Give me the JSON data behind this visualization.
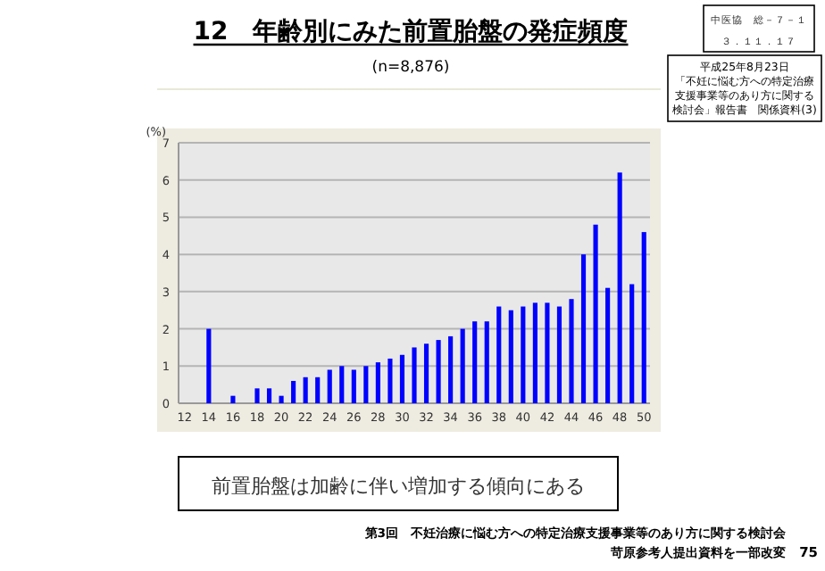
{
  "chart_data": {
    "type": "bar",
    "title": "12　年齢別にみた前置胎盤の発症頻度",
    "subtitle": "(n=8,876)",
    "ylabel": "(%)",
    "categories": [
      "12",
      null,
      "14",
      null,
      "16",
      null,
      "18",
      null,
      "20",
      null,
      "22",
      null,
      "24",
      null,
      "26",
      null,
      "28",
      null,
      "30",
      null,
      "32",
      null,
      "34",
      null,
      "36",
      null,
      "38",
      null,
      "40",
      null,
      "42",
      null,
      "44",
      null,
      "46",
      null,
      "48",
      null,
      "50"
    ],
    "values": [
      null,
      null,
      2.0,
      null,
      0.2,
      null,
      0.4,
      0.4,
      0.2,
      0.6,
      0.7,
      0.7,
      0.9,
      1.0,
      0.9,
      1.0,
      1.1,
      1.2,
      1.3,
      1.5,
      1.6,
      1.7,
      1.8,
      2.0,
      2.2,
      2.2,
      2.6,
      2.5,
      2.6,
      2.7,
      2.7,
      2.6,
      2.8,
      4.0,
      4.8,
      3.1,
      6.2,
      3.2,
      4.6
    ],
    "color": "#0000ff",
    "ylim": [
      0,
      7
    ],
    "yticks": [
      0,
      1,
      2,
      3,
      4,
      5,
      6,
      7
    ],
    "grid": "y",
    "annotations": [
      "中医協　総－７－１",
      "３．１１．１７",
      "平成25年8月23日",
      "「不妊に悩む方への特定治療",
      "支援事業等のあり方に関する",
      "検討会」報告書　関係資料(3)",
      "前置胎盤は加齢に伴い増加する傾向にある",
      "第3回　不妊治療に悩む方への特定治療支援事業等のあり方に関する検討会",
      "苛原参考人提出資料を一部改変",
      "75"
    ]
  }
}
